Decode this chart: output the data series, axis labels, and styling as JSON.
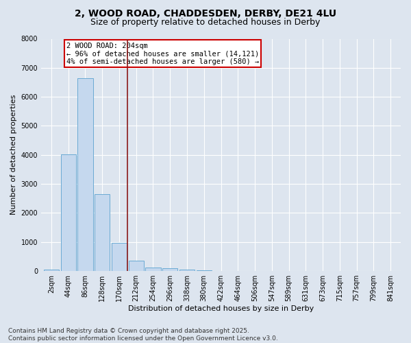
{
  "title_line1": "2, WOOD ROAD, CHADDESDEN, DERBY, DE21 4LU",
  "title_line2": "Size of property relative to detached houses in Derby",
  "xlabel": "Distribution of detached houses by size in Derby",
  "ylabel": "Number of detached properties",
  "categories": [
    "2sqm",
    "44sqm",
    "86sqm",
    "128sqm",
    "170sqm",
    "212sqm",
    "254sqm",
    "296sqm",
    "338sqm",
    "380sqm",
    "422sqm",
    "464sqm",
    "506sqm",
    "547sqm",
    "589sqm",
    "631sqm",
    "673sqm",
    "715sqm",
    "757sqm",
    "799sqm",
    "841sqm"
  ],
  "values": [
    60,
    4020,
    6630,
    2640,
    970,
    360,
    130,
    90,
    50,
    30,
    10,
    5,
    2,
    1,
    0,
    0,
    0,
    0,
    0,
    0,
    0
  ],
  "bar_color": "#c5d8ee",
  "bar_edge_color": "#6aaad4",
  "vline_x_index": 4.5,
  "vline_color": "#8b1a1a",
  "annotation_text": "2 WOOD ROAD: 204sqm\n← 96% of detached houses are smaller (14,121)\n4% of semi-detached houses are larger (580) →",
  "annotation_box_color": "white",
  "annotation_box_edge_color": "#cc0000",
  "ylim": [
    0,
    8000
  ],
  "yticks": [
    0,
    1000,
    2000,
    3000,
    4000,
    5000,
    6000,
    7000,
    8000
  ],
  "background_color": "#dde5ef",
  "plot_background_color": "#dde5ef",
  "footer_line1": "Contains HM Land Registry data © Crown copyright and database right 2025.",
  "footer_line2": "Contains public sector information licensed under the Open Government Licence v3.0.",
  "grid_color": "white",
  "title_fontsize": 10,
  "subtitle_fontsize": 9,
  "tick_fontsize": 7,
  "ylabel_fontsize": 8,
  "xlabel_fontsize": 8,
  "footer_fontsize": 6.5,
  "annot_fontsize": 7.5
}
